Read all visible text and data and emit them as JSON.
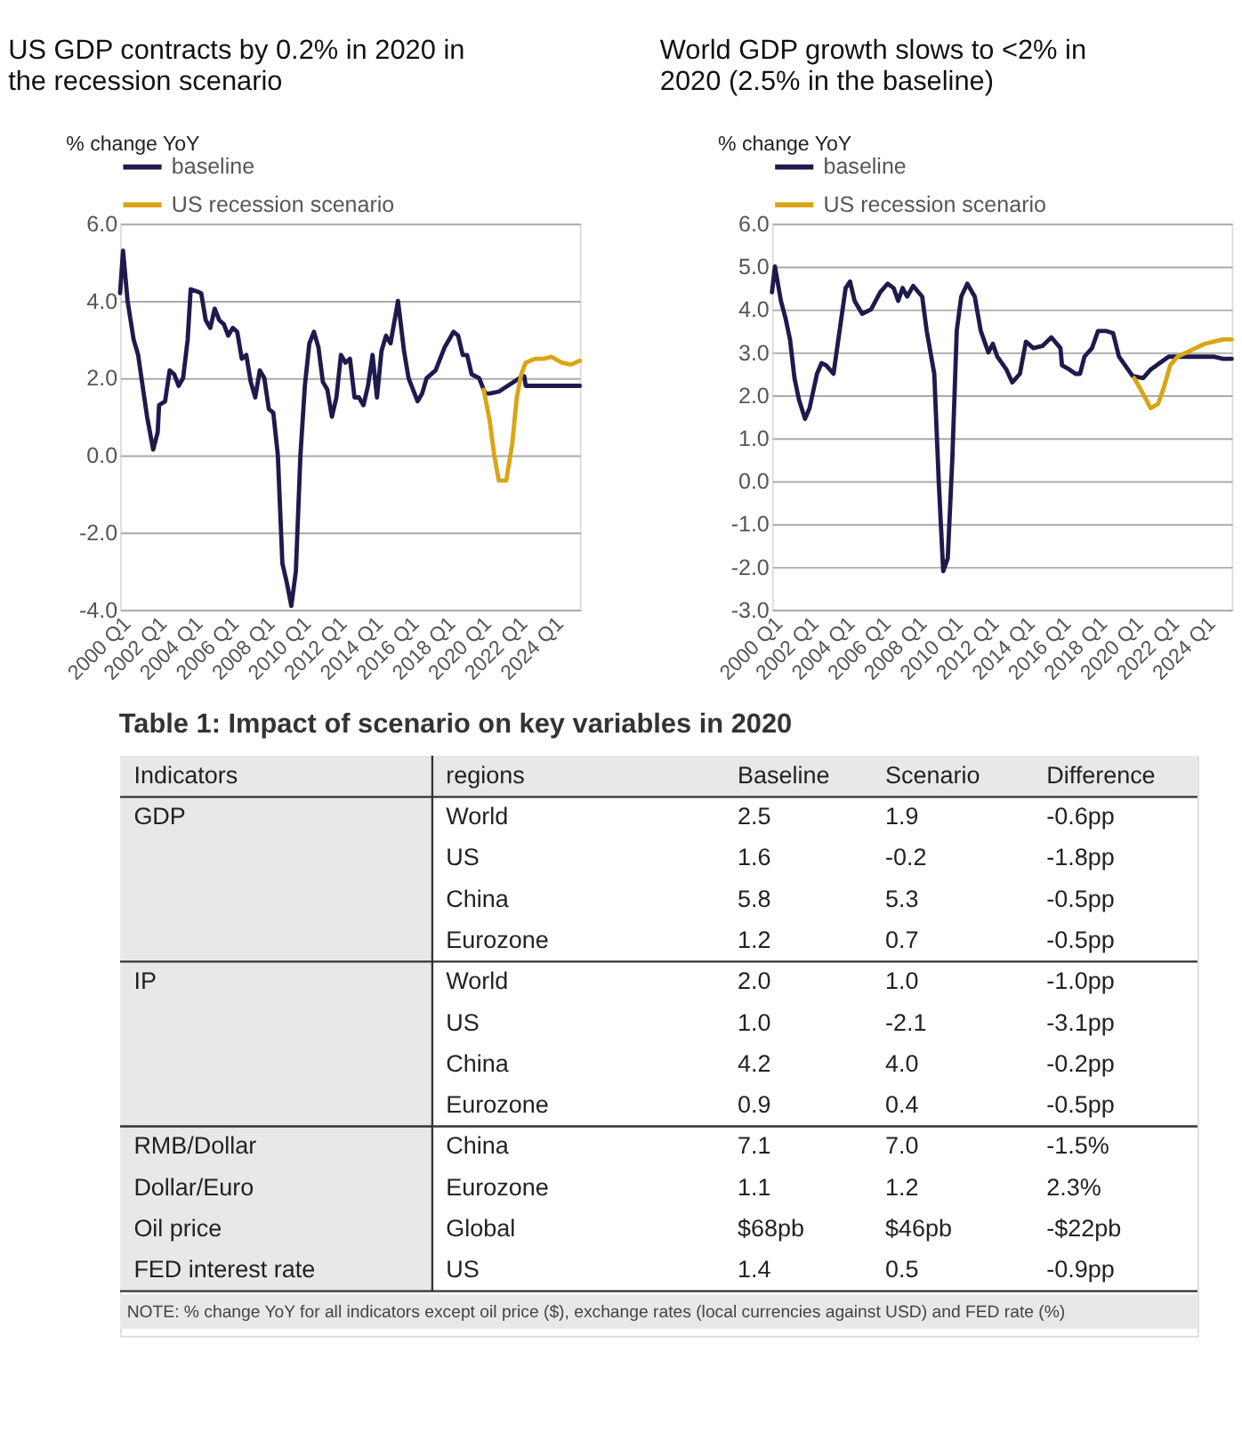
{
  "chart_data": [
    {
      "type": "line",
      "title": "US GDP contracts by 0.2% in 2020 in the recession scenario",
      "ylabel": "% change YoY",
      "legend": "top",
      "grid": "y",
      "xlim": [
        "2000-01",
        "2025-07"
      ],
      "xticks": [
        {
          "value": "2000-01",
          "label": "2000 Q1"
        },
        {
          "value": "2002-01",
          "label": "2002 Q1"
        },
        {
          "value": "2004-01",
          "label": "2004 Q1"
        },
        {
          "value": "2006-01",
          "label": "2006 Q1"
        },
        {
          "value": "2008-01",
          "label": "2008 Q1"
        },
        {
          "value": "2010-01",
          "label": "2010 Q1"
        },
        {
          "value": "2012-01",
          "label": "2012 Q1"
        },
        {
          "value": "2014-01",
          "label": "2014 Q1"
        },
        {
          "value": "2016-01",
          "label": "2016 Q1"
        },
        {
          "value": "2018-01",
          "label": "2018 Q1"
        },
        {
          "value": "2020-01",
          "label": "2020 Q1"
        },
        {
          "value": "2022-01",
          "label": "2022 Q1"
        },
        {
          "value": "2024-01",
          "label": "2024 Q1"
        }
      ],
      "ylim": [
        -4,
        6
      ],
      "yticks": [
        {
          "value": -4,
          "label": "-4.0"
        },
        {
          "value": -2,
          "label": "-2.0"
        },
        {
          "value": 0,
          "label": "0.0"
        },
        {
          "value": 2,
          "label": "2.0"
        },
        {
          "value": 4,
          "label": "4.0"
        },
        {
          "value": 6,
          "label": "6.0"
        }
      ],
      "series": [
        {
          "name": "baseline",
          "color": "#1f1a4d",
          "x": [
            "2000-01",
            "2000-03",
            "2000-06",
            "2000-10",
            "2001-01",
            "2001-04",
            "2001-07",
            "2001-11",
            "2002-02",
            "2002-03",
            "2002-07",
            "2002-10",
            "2003-01",
            "2003-04",
            "2003-07",
            "2003-10",
            "2003-12",
            "2004-04",
            "2004-07",
            "2004-10",
            "2005-01",
            "2005-04",
            "2005-07",
            "2005-10",
            "2006-01",
            "2006-04",
            "2006-07",
            "2006-10",
            "2007-01",
            "2007-04",
            "2007-07",
            "2007-10",
            "2008-01",
            "2008-04",
            "2008-07",
            "2008-10",
            "2009-01",
            "2009-04",
            "2009-07",
            "2009-10",
            "2010-01",
            "2010-04",
            "2010-07",
            "2010-10",
            "2011-01",
            "2011-04",
            "2011-07",
            "2011-10",
            "2012-01",
            "2012-04",
            "2012-07",
            "2012-10",
            "2013-01",
            "2013-04",
            "2013-07",
            "2013-10",
            "2014-01",
            "2014-04",
            "2014-07",
            "2014-10",
            "2015-01",
            "2015-06",
            "2015-10",
            "2016-01",
            "2016-07",
            "2016-10",
            "2017-01",
            "2017-07",
            "2018-01",
            "2018-04",
            "2018-07",
            "2018-10",
            "2019-01",
            "2019-04",
            "2019-07",
            "2019-12",
            "2020-04",
            "2020-07",
            "2021-01",
            "2021-07",
            "2022-03",
            "2022-06",
            "2022-07",
            "2023-01",
            "2024-01",
            "2025-01",
            "2025-07"
          ],
          "values": [
            4.2,
            5.3,
            4.0,
            3.0,
            2.6,
            1.8,
            1.0,
            0.15,
            0.6,
            1.3,
            1.4,
            2.2,
            2.1,
            1.8,
            2.0,
            3.0,
            4.3,
            4.25,
            4.2,
            3.5,
            3.3,
            3.8,
            3.5,
            3.4,
            3.1,
            3.3,
            3.2,
            2.5,
            2.6,
            1.9,
            1.5,
            2.2,
            2.0,
            1.2,
            1.1,
            0.0,
            -2.8,
            -3.3,
            -3.9,
            -3.0,
            0.0,
            1.8,
            2.9,
            3.2,
            2.8,
            1.9,
            1.7,
            1.0,
            1.5,
            2.6,
            2.4,
            2.5,
            1.5,
            1.5,
            1.3,
            1.8,
            2.6,
            1.5,
            2.7,
            3.1,
            2.9,
            4.0,
            2.7,
            2.0,
            1.4,
            1.6,
            2.0,
            2.2,
            2.8,
            3.0,
            3.2,
            3.1,
            2.6,
            2.6,
            2.1,
            2.0,
            1.6,
            1.6,
            1.65,
            1.8,
            2.0,
            2.05,
            1.8,
            1.8,
            1.8,
            1.8,
            1.8
          ]
        },
        {
          "name": "US recession scenario",
          "color": "#d9a514",
          "x": [
            "2020-03",
            "2020-07",
            "2020-10",
            "2021-01",
            "2021-06",
            "2021-10",
            "2022-01",
            "2022-04",
            "2022-07",
            "2023-01",
            "2023-07",
            "2023-12",
            "2024-07",
            "2025-01",
            "2025-07"
          ],
          "values": [
            1.7,
            0.9,
            0.0,
            -0.65,
            -0.65,
            0.3,
            1.5,
            2.1,
            2.4,
            2.5,
            2.5,
            2.55,
            2.4,
            2.35,
            2.45
          ]
        }
      ]
    },
    {
      "type": "line",
      "title": "World GDP growth slows to <2% in 2020 (2.5% in the baseline)",
      "ylabel": "% change YoY",
      "legend": "top",
      "grid": "y",
      "xlim": [
        "2000-01",
        "2025-07"
      ],
      "xticks": [
        {
          "value": "2000-01",
          "label": "2000 Q1"
        },
        {
          "value": "2002-01",
          "label": "2002 Q1"
        },
        {
          "value": "2004-01",
          "label": "2004 Q1"
        },
        {
          "value": "2006-01",
          "label": "2006 Q1"
        },
        {
          "value": "2008-01",
          "label": "2008 Q1"
        },
        {
          "value": "2010-01",
          "label": "2010 Q1"
        },
        {
          "value": "2012-01",
          "label": "2012 Q1"
        },
        {
          "value": "2014-01",
          "label": "2014 Q1"
        },
        {
          "value": "2016-01",
          "label": "2016 Q1"
        },
        {
          "value": "2018-01",
          "label": "2018 Q1"
        },
        {
          "value": "2020-01",
          "label": "2020 Q1"
        },
        {
          "value": "2022-01",
          "label": "2022 Q1"
        },
        {
          "value": "2024-01",
          "label": "2024 Q1"
        }
      ],
      "ylim": [
        -3,
        6
      ],
      "yticks": [
        {
          "value": -3,
          "label": "-3.0"
        },
        {
          "value": -2,
          "label": "-2.0"
        },
        {
          "value": -1,
          "label": "-1.0"
        },
        {
          "value": 0,
          "label": "0.0"
        },
        {
          "value": 1,
          "label": "1.0"
        },
        {
          "value": 2,
          "label": "2.0"
        },
        {
          "value": 3,
          "label": "3.0"
        },
        {
          "value": 4,
          "label": "4.0"
        },
        {
          "value": 5,
          "label": "5.0"
        },
        {
          "value": 6,
          "label": "6.0"
        }
      ],
      "series": [
        {
          "name": "baseline",
          "color": "#1f1a4d",
          "x": [
            "2000-01",
            "2000-03",
            "2000-07",
            "2000-10",
            "2001-01",
            "2001-04",
            "2001-07",
            "2001-11",
            "2002-02",
            "2002-07",
            "2002-10",
            "2003-01",
            "2003-06",
            "2003-10",
            "2004-02",
            "2004-05",
            "2004-08",
            "2005-01",
            "2005-07",
            "2006-01",
            "2006-06",
            "2006-10",
            "2007-01",
            "2007-04",
            "2007-07",
            "2007-11",
            "2008-05",
            "2008-08",
            "2009-01",
            "2009-04",
            "2009-07",
            "2009-10",
            "2010-01",
            "2010-04",
            "2010-07",
            "2010-11",
            "2011-04",
            "2011-08",
            "2012-01",
            "2012-04",
            "2012-07",
            "2013-01",
            "2013-05",
            "2013-10",
            "2014-02",
            "2014-07",
            "2015-01",
            "2015-07",
            "2016-01",
            "2016-02",
            "2016-07",
            "2016-11",
            "2017-02",
            "2017-05",
            "2017-10",
            "2018-02",
            "2018-07",
            "2018-12",
            "2019-04",
            "2019-07",
            "2020-01",
            "2020-08",
            "2021-01",
            "2021-07",
            "2022-01",
            "2022-06",
            "2023-01",
            "2024-01",
            "2024-07",
            "2025-01",
            "2025-07"
          ],
          "values": [
            4.4,
            5.0,
            4.2,
            3.8,
            3.3,
            2.4,
            1.9,
            1.45,
            1.7,
            2.5,
            2.75,
            2.7,
            2.5,
            3.5,
            4.5,
            4.65,
            4.2,
            3.9,
            4.0,
            4.4,
            4.6,
            4.5,
            4.2,
            4.5,
            4.3,
            4.55,
            4.3,
            3.5,
            2.5,
            0.0,
            -2.1,
            -1.8,
            0.5,
            3.5,
            4.3,
            4.6,
            4.3,
            3.5,
            3.0,
            3.2,
            2.9,
            2.6,
            2.3,
            2.5,
            3.25,
            3.1,
            3.15,
            3.35,
            3.1,
            2.7,
            2.6,
            2.5,
            2.5,
            2.9,
            3.1,
            3.5,
            3.5,
            3.45,
            2.9,
            2.75,
            2.45,
            2.4,
            2.6,
            2.75,
            2.9,
            2.9,
            2.9,
            2.9,
            2.9,
            2.85,
            2.85
          ]
        },
        {
          "name": "US recession scenario",
          "color": "#d9a514",
          "x": [
            "2020-02",
            "2020-07",
            "2021-01",
            "2021-06",
            "2021-10",
            "2022-02",
            "2022-07",
            "2023-01",
            "2023-07",
            "2024-01",
            "2024-07",
            "2025-01",
            "2025-07"
          ],
          "values": [
            2.4,
            2.1,
            1.7,
            1.8,
            2.2,
            2.7,
            2.9,
            3.0,
            3.1,
            3.2,
            3.25,
            3.3,
            3.3
          ]
        }
      ]
    },
    {
      "type": "other",
      "title": "Table 1: Impact of scenario on key variables in 2020",
      "categories": [
        "Indicators",
        "regions",
        "Baseline",
        "Scenario",
        "Difference"
      ],
      "cell_labels": [
        [
          "GDP",
          "World",
          "2.5",
          "1.9",
          "-0.6pp"
        ],
        [
          null,
          "US",
          "1.6",
          "-0.2",
          "-1.8pp"
        ],
        [
          null,
          "China",
          "5.8",
          "5.3",
          "-0.5pp"
        ],
        [
          null,
          "Eurozone",
          "1.2",
          "0.7",
          "-0.5pp"
        ],
        [
          "IP",
          "World",
          "2.0",
          "1.0",
          "-1.0pp"
        ],
        [
          null,
          "US",
          "1.0",
          "-2.1",
          "-3.1pp"
        ],
        [
          null,
          "China",
          "4.2",
          "4.0",
          "-0.2pp"
        ],
        [
          null,
          "Eurozone",
          "0.9",
          "0.4",
          "-0.5pp"
        ],
        [
          "RMB/Dollar",
          "China",
          "7.1",
          "7.0",
          "-1.5%"
        ],
        [
          "Dollar/Euro",
          "Eurozone",
          "1.1",
          "1.2",
          "2.3%"
        ],
        [
          "Oil price",
          "Global",
          "$68pb",
          "$46pb",
          "-$22pb"
        ],
        [
          "FED interest rate",
          "US",
          "1.4",
          "0.5",
          "-0.9pp"
        ]
      ],
      "annotations": [
        "NOTE: % change YoY for all indicators except oil price ($), exchange rates (local currencies against USD) and FED rate (%)"
      ]
    }
  ]
}
